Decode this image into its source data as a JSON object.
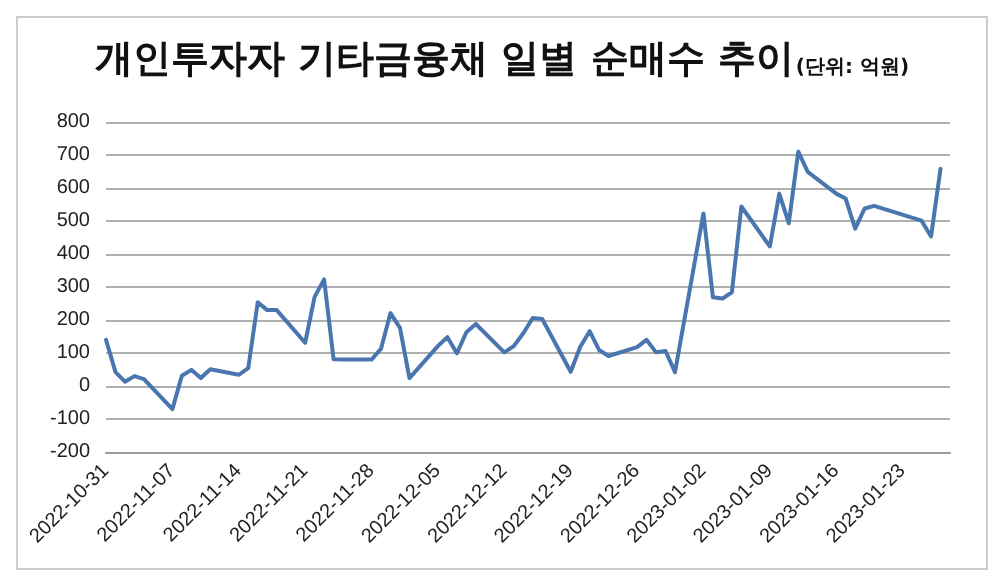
{
  "chart_data": {
    "type": "line",
    "title": "개인투자자 기타금융채 일별 순매수 추이",
    "subtitle": "(단위: 억원)",
    "x": [
      "2022-10-31",
      "2022-11-01",
      "2022-11-02",
      "2022-11-03",
      "2022-11-04",
      "2022-11-07",
      "2022-11-08",
      "2022-11-09",
      "2022-11-10",
      "2022-11-11",
      "2022-11-14",
      "2022-11-15",
      "2022-11-16",
      "2022-11-17",
      "2022-11-18",
      "2022-11-21",
      "2022-11-22",
      "2022-11-23",
      "2022-11-24",
      "2022-11-25",
      "2022-11-28",
      "2022-11-29",
      "2022-11-30",
      "2022-12-01",
      "2022-12-02",
      "2022-12-05",
      "2022-12-06",
      "2022-12-07",
      "2022-12-08",
      "2022-12-09",
      "2022-12-12",
      "2022-12-13",
      "2022-12-14",
      "2022-12-15",
      "2022-12-16",
      "2022-12-19",
      "2022-12-20",
      "2022-12-21",
      "2022-12-22",
      "2022-12-23",
      "2022-12-26",
      "2022-12-27",
      "2022-12-28",
      "2022-12-29",
      "2022-12-30",
      "2023-01-02",
      "2023-01-03",
      "2023-01-04",
      "2023-01-05",
      "2023-01-06",
      "2023-01-09",
      "2023-01-10",
      "2023-01-11",
      "2023-01-12",
      "2023-01-13",
      "2023-01-16",
      "2023-01-17",
      "2023-01-18",
      "2023-01-19",
      "2023-01-20",
      "2023-01-25",
      "2023-01-26",
      "2023-01-27"
    ],
    "series": [
      {
        "color": "#4a76b0",
        "values": [
          140,
          42,
          13,
          30,
          21,
          -70,
          31,
          49,
          24,
          51,
          34,
          54,
          254,
          230,
          230,
          131,
          270,
          323,
          81,
          80,
          80,
          113,
          221,
          176,
          24,
          121,
          148,
          99,
          163,
          188,
          102,
          121,
          160,
          206,
          203,
          43,
          118,
          166,
          109,
          91,
          118,
          140,
          102,
          106,
          42,
          523,
          269,
          265,
          284,
          544,
          423,
          583,
          493,
          710,
          649,
          583,
          568,
          477,
          538,
          546,
          501,
          453,
          658
        ]
      }
    ],
    "xlim": [
      "2022-10-31",
      "2023-01-28"
    ],
    "xticks": [
      "2022-10-31",
      "2022-11-07",
      "2022-11-14",
      "2022-11-21",
      "2022-11-28",
      "2022-12-05",
      "2022-12-12",
      "2022-12-19",
      "2022-12-26",
      "2023-01-02",
      "2023-01-09",
      "2023-01-16",
      "2023-01-23"
    ],
    "ylim": [
      -200,
      800
    ],
    "yticks": [
      -200,
      -100,
      0,
      100,
      200,
      300,
      400,
      500,
      600,
      700,
      800
    ],
    "grid": "y",
    "marker": "none",
    "line_style": "solid"
  }
}
